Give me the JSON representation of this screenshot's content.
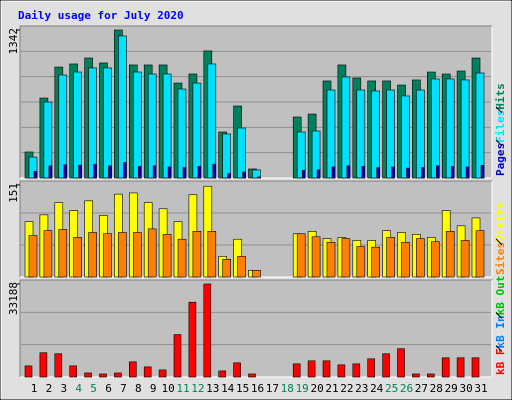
{
  "chart_data": [
    {
      "type": "bar",
      "title": "Daily usage for July 2020",
      "ylim": [
        0,
        1342
      ],
      "yticks": [
        1342
      ],
      "series": [
        {
          "name": "Hits",
          "color": "#00805c",
          "values": [
            236,
            725,
            1006,
            1034,
            1088,
            1043,
            1342,
            1025,
            1025,
            1025,
            861,
            943,
            1152,
            417,
            653,
            82,
            0,
            0,
            553,
            580,
            880,
            1025,
            907,
            880,
            880,
            843,
            889,
            961,
            943,
            970,
            1088
          ]
        },
        {
          "name": "Files",
          "color": "#00e0ff",
          "values": [
            190,
            689,
            934,
            961,
            998,
            998,
            1288,
            961,
            943,
            943,
            807,
            861,
            1034,
            399,
            453,
            73,
            0,
            0,
            417,
            426,
            798,
            916,
            798,
            789,
            798,
            744,
            798,
            898,
            898,
            889,
            952
          ]
        },
        {
          "name": "Pages",
          "color": "#0000c0",
          "values": [
            60,
            110,
            120,
            115,
            125,
            110,
            140,
            105,
            110,
            100,
            95,
            105,
            125,
            40,
            55,
            10,
            0,
            0,
            70,
            75,
            100,
            110,
            105,
            95,
            100,
            90,
            95,
            110,
            105,
            100,
            115
          ]
        }
      ],
      "legend_order": [
        "Pages",
        "Files",
        "Hits"
      ]
    },
    {
      "type": "bar",
      "ylim": [
        0,
        151
      ],
      "yticks": [
        151
      ],
      "series": [
        {
          "name": "Visits",
          "color": "#ffff00",
          "values": [
            91,
            102,
            122,
            109,
            125,
            101,
            136,
            138,
            122,
            112,
            91,
            135,
            149,
            34,
            62,
            11,
            0,
            0,
            71,
            75,
            63,
            65,
            60,
            60,
            76,
            73,
            70,
            65,
            109,
            84,
            97
          ]
        },
        {
          "name": "Sites",
          "color": "#ff8000",
          "values": [
            68,
            76,
            78,
            65,
            73,
            71,
            73,
            73,
            79,
            70,
            62,
            75,
            75,
            29,
            34,
            11,
            0,
            0,
            71,
            66,
            57,
            63,
            50,
            49,
            65,
            57,
            63,
            58,
            75,
            60,
            76
          ]
        }
      ],
      "legend_order": [
        "Sites",
        "Visits"
      ]
    },
    {
      "type": "bar",
      "ylim": [
        0,
        33188
      ],
      "yticks": [
        33188
      ],
      "categories": [
        "1",
        "2",
        "3",
        "4",
        "5",
        "6",
        "7",
        "8",
        "9",
        "10",
        "11",
        "12",
        "13",
        "14",
        "15",
        "16",
        "17",
        "18",
        "19",
        "20",
        "21",
        "22",
        "23",
        "24",
        "25",
        "26",
        "27",
        "28",
        "29",
        "30",
        "31"
      ],
      "weekend_color": "#00805c",
      "weekday_color": "#000000",
      "weekends": [
        4,
        5,
        11,
        12,
        18,
        19,
        25,
        26
      ],
      "series": [
        {
          "name": "kB F",
          "color": "#ff0000",
          "values": [
            3968,
            8657,
            8297,
            3968,
            1443,
            1082,
            1443,
            5411,
            3607,
            2525,
            15150,
            26692,
            33188,
            2164,
            5050,
            1082,
            0,
            0,
            4689,
            5771,
            5771,
            4328,
            4689,
            6493,
            8297,
            10100,
            1082,
            1082,
            6853,
            6853,
            6853
          ]
        }
      ],
      "legend_labels": [
        {
          "text": "kB In",
          "color": "#0080ff"
        },
        {
          "text": "kB Out",
          "color": "#00c000"
        }
      ]
    }
  ]
}
